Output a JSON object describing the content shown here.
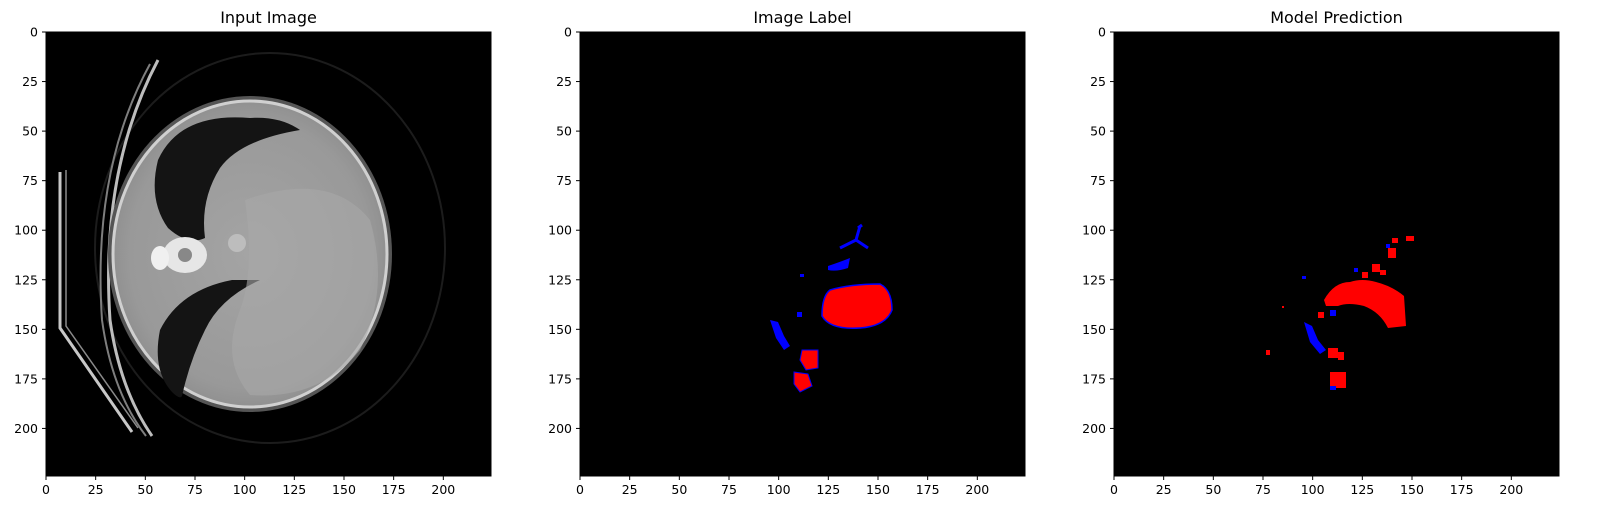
{
  "figure": {
    "panels": [
      {
        "title": "Input Image",
        "kind": "ct"
      },
      {
        "title": "Image Label",
        "kind": "label"
      },
      {
        "title": "Model Prediction",
        "kind": "prediction"
      }
    ],
    "x_ticks": [
      "0",
      "25",
      "50",
      "75",
      "100",
      "125",
      "150",
      "175",
      "200"
    ],
    "y_ticks": [
      "0",
      "25",
      "50",
      "75",
      "100",
      "125",
      "150",
      "175",
      "200"
    ],
    "x_tick_values": [
      0,
      25,
      50,
      75,
      100,
      125,
      150,
      175,
      200
    ],
    "y_tick_values": [
      0,
      25,
      50,
      75,
      100,
      125,
      150,
      175,
      200
    ],
    "axis_range": [
      0,
      224
    ],
    "background_color": "#000000",
    "class_colors": {
      "class_1": "#ff0000",
      "class_2": "#0000ff"
    }
  }
}
